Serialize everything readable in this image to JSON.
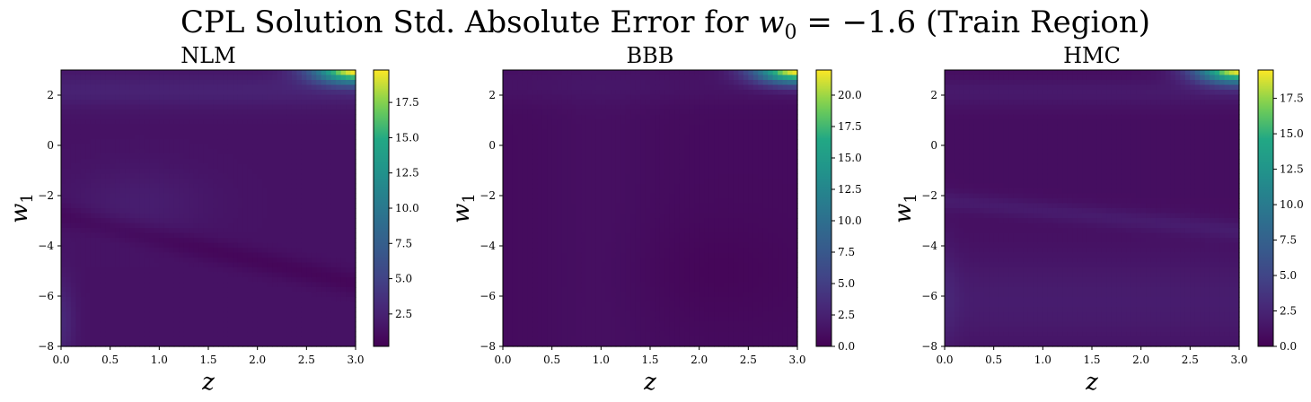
{
  "chart_data": [
    {
      "type": "heatmap",
      "title": "NLM",
      "xlabel": "z",
      "ylabel": "w1",
      "xlim": [
        0.0,
        3.0
      ],
      "ylim": [
        -8,
        3
      ],
      "x_ticks": [
        "0.0",
        "0.5",
        "1.0",
        "1.5",
        "2.0",
        "2.5",
        "3.0"
      ],
      "y_ticks": [
        "2",
        "0",
        "−2",
        "−4",
        "−6",
        "−8"
      ],
      "colorbar": {
        "vmin": 0.2,
        "vmax": 19.8,
        "ticks": [
          "2.5",
          "5.0",
          "7.5",
          "10.0",
          "12.5",
          "15.0",
          "17.5"
        ],
        "tick_values": [
          2.5,
          5.0,
          7.5,
          10.0,
          12.5,
          15.0,
          17.5
        ]
      },
      "colormap": "viridis",
      "features": {
        "peak_value": 19.8,
        "peak_location": "top-right",
        "background_level": 1.4
      }
    },
    {
      "type": "heatmap",
      "title": "BBB",
      "xlabel": "z",
      "ylabel": "w1",
      "xlim": [
        0.0,
        3.0
      ],
      "ylim": [
        -8,
        3
      ],
      "x_ticks": [
        "0.0",
        "0.5",
        "1.0",
        "1.5",
        "2.0",
        "2.5",
        "3.0"
      ],
      "y_ticks": [
        "2",
        "0",
        "−2",
        "−4",
        "−6",
        "−8"
      ],
      "colorbar": {
        "vmin": 0.0,
        "vmax": 22.0,
        "ticks": [
          "0.0",
          "2.5",
          "5.0",
          "7.5",
          "10.0",
          "12.5",
          "15.0",
          "17.5",
          "20.0"
        ],
        "tick_values": [
          0.0,
          2.5,
          5.0,
          7.5,
          10.0,
          12.5,
          15.0,
          17.5,
          20.0
        ]
      },
      "colormap": "viridis",
      "features": {
        "peak_value": 22.0,
        "peak_location": "top-right",
        "background_level": 0.8
      }
    },
    {
      "type": "heatmap",
      "title": "HMC",
      "xlabel": "z",
      "ylabel": "w1",
      "xlim": [
        0.0,
        3.0
      ],
      "ylim": [
        -8,
        3
      ],
      "x_ticks": [
        "0.0",
        "0.5",
        "1.0",
        "1.5",
        "2.0",
        "2.5",
        "3.0"
      ],
      "y_ticks": [
        "2",
        "0",
        "−2",
        "−4",
        "−6",
        "−8"
      ],
      "colorbar": {
        "vmin": 0.0,
        "vmax": 19.5,
        "ticks": [
          "0.0",
          "2.5",
          "5.0",
          "7.5",
          "10.0",
          "12.5",
          "15.0",
          "17.5"
        ],
        "tick_values": [
          0.0,
          2.5,
          5.0,
          7.5,
          10.0,
          12.5,
          15.0,
          17.5
        ]
      },
      "colormap": "viridis",
      "features": {
        "peak_value": 19.5,
        "peak_location": "top-right",
        "background_level": 0.9
      }
    }
  ],
  "figure": {
    "suptitle_prefix": "CPL Solution Std. Absolute Error for ",
    "suptitle_var": "w",
    "suptitle_sub": "0",
    "suptitle_eq": " = −1.6 (Train Region)",
    "ylabel_var": "w",
    "ylabel_sub": "1"
  }
}
